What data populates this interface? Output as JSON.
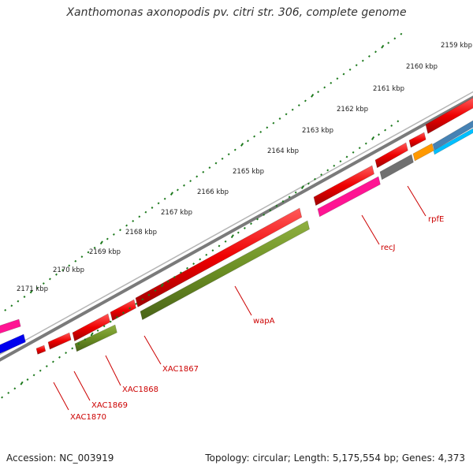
{
  "title": "Xanthomonas axonopodis pv. citri str. 306, complete genome",
  "footer": {
    "accession": "Accession: NC_003919",
    "topology": "Topology: circular; Length: 5,175,554 bp; Genes: 4,373"
  },
  "kbp_labels": [
    "2159 kbp",
    "2160 kbp",
    "2161 kbp",
    "2162 kbp",
    "2163 kbp",
    "2164 kbp",
    "2165 kbp",
    "2166 kbp",
    "2167 kbp",
    "2168 kbp",
    "2169 kbp",
    "2170 kbp",
    "2171 kbp"
  ],
  "gene_labels": [
    "rpfE",
    "recJ",
    "wapA",
    "XAC1867",
    "XAC1868",
    "XAC1869",
    "XAC1870"
  ],
  "colors": {
    "backbone": "#7a7a7a",
    "tick": "#1e7a1e",
    "gene_red": "#ee0000",
    "gene_olive": "#6b8e23",
    "gene_pink": "#ff1493",
    "gene_gray": "#707070",
    "gene_orange": "#ff9900",
    "gene_steelblue": "#4682b4",
    "gene_cyan": "#00bfff",
    "gene_blue": "#0000ee",
    "label_red": "#cc0000"
  }
}
